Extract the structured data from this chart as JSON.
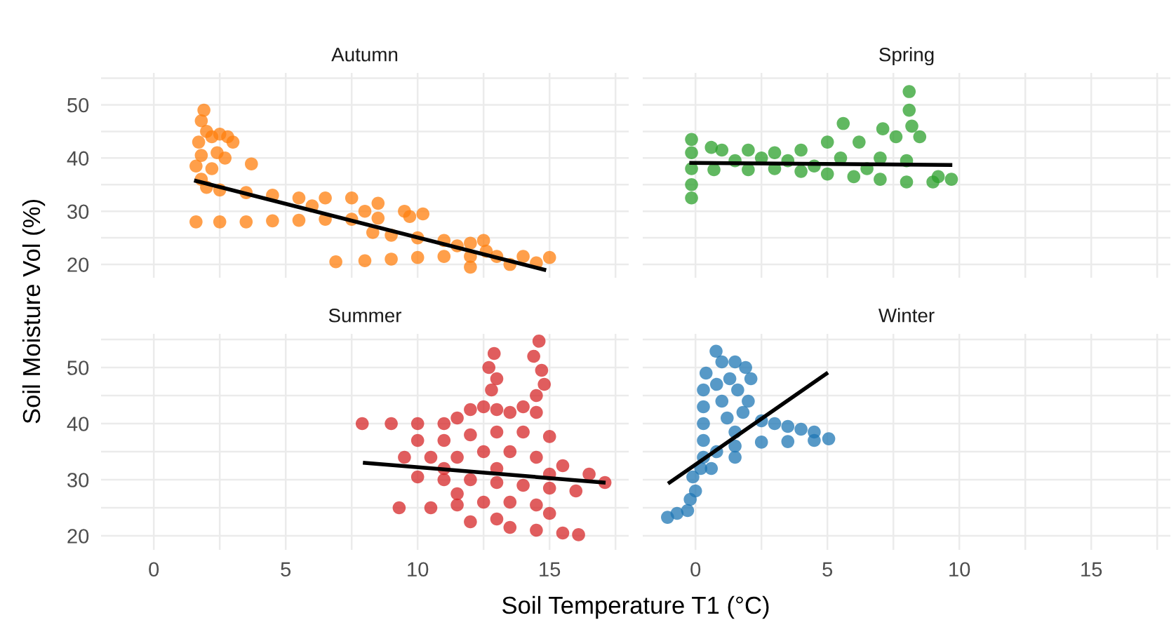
{
  "chart_data": [
    {
      "type": "scatter",
      "title": "Autumn",
      "ylabel": "Soil Moisture Vol (%)",
      "xlim": [
        -2,
        18
      ],
      "ylim": [
        17.5,
        56
      ],
      "xticks": [
        0,
        {
          "value": 2.5,
          "label": null
        },
        5,
        {
          "value": 7.5,
          "label": null
        },
        10,
        {
          "value": 12.5,
          "label": null
        },
        15,
        {
          "value": 17.5,
          "label": null
        }
      ],
      "yticks": [
        20,
        {
          "value": 25,
          "label": null
        },
        30,
        {
          "value": 35,
          "label": null
        },
        40,
        {
          "value": 45,
          "label": null
        },
        50,
        {
          "value": 55,
          "label": null
        }
      ],
      "tick_labels": "y",
      "grid": true,
      "marker": "circle",
      "series": [
        {
          "color": "#ff7f0e",
          "x": [
            1.9,
            1.8,
            2.0,
            1.7,
            2.2,
            2.5,
            2.8,
            3.0,
            2.4,
            1.8,
            2.7,
            1.6,
            2.2,
            3.7,
            1.8,
            2.0,
            2.5,
            3.5,
            4.5,
            5.5,
            6.5,
            7.5,
            8.5,
            9.5,
            10.2,
            6,
            8,
            1.6,
            2.5,
            3.5,
            4.5,
            5.5,
            6.5,
            7.5,
            8.5,
            9.7,
            8.3,
            9,
            10,
            11,
            12,
            12.5,
            12.6,
            11.5,
            6.9,
            8,
            9,
            10,
            11,
            12,
            13,
            14,
            15,
            12,
            13.5,
            14.5
          ],
          "values": [
            49,
            47,
            45,
            43,
            44,
            44.5,
            44,
            43,
            41,
            40.5,
            40,
            38.5,
            38,
            38.9,
            36,
            34.5,
            34,
            33.5,
            33,
            32.5,
            32.5,
            32.5,
            31.5,
            30,
            29.5,
            31,
            30,
            28,
            28,
            28,
            28.2,
            28.3,
            28.5,
            28.5,
            28.7,
            29,
            26,
            25.5,
            25,
            24.5,
            24,
            24.5,
            22.5,
            23.5,
            20.5,
            20.7,
            21,
            21.3,
            21.5,
            21.5,
            21.5,
            21.5,
            21.3,
            19.5,
            20,
            20.3
          ]
        },
        {
          "type": "line",
          "color": "#000000",
          "marker": "none",
          "x": [
            1.6,
            14.8
          ],
          "values": [
            35.7,
            19.0
          ]
        }
      ]
    },
    {
      "type": "scatter",
      "title": "Spring",
      "xlim": [
        -2,
        18
      ],
      "ylim": [
        17.5,
        56
      ],
      "xticks": [
        0,
        {
          "value": 2.5,
          "label": null
        },
        5,
        {
          "value": 7.5,
          "label": null
        },
        10,
        {
          "value": 12.5,
          "label": null
        },
        15,
        {
          "value": 17.5,
          "label": null
        }
      ],
      "yticks": [
        20,
        {
          "value": 25,
          "label": null
        },
        30,
        {
          "value": 35,
          "label": null
        },
        40,
        {
          "value": 45,
          "label": null
        },
        50,
        {
          "value": 55,
          "label": null
        }
      ],
      "tick_labels": false,
      "grid": true,
      "marker": "circle",
      "series": [
        {
          "color": "#2ca02c",
          "x": [
            -0.15,
            -0.15,
            -0.15,
            -0.15,
            -0.15,
            0.6,
            1,
            2,
            3,
            4,
            5,
            5.6,
            6.2,
            7.1,
            7.6,
            8.1,
            8.1,
            8.2,
            8.5,
            0.7,
            2,
            3,
            4,
            5,
            6,
            7,
            8,
            9,
            9.7,
            9.2,
            1.5,
            3.5,
            5.5,
            7,
            8,
            6.5,
            4.5,
            2.5
          ],
          "values": [
            43.5,
            41,
            38,
            35,
            32.5,
            42,
            41.5,
            41.5,
            41,
            41.5,
            43,
            46.5,
            43,
            45.5,
            44,
            52.5,
            49,
            46,
            44,
            37.8,
            37.8,
            38,
            37.5,
            37,
            36.5,
            36,
            35.5,
            35.5,
            36,
            36.5,
            39.5,
            39.5,
            40,
            40,
            39.5,
            38,
            38.5,
            40
          ]
        },
        {
          "type": "line",
          "color": "#000000",
          "marker": "none",
          "x": [
            -0.16,
            9.66
          ],
          "values": [
            39.1,
            38.7
          ]
        }
      ]
    },
    {
      "type": "scatter",
      "title": "Summer",
      "xlabel": "Soil Temperature T1 (°C)",
      "xlim": [
        -2,
        18
      ],
      "ylim": [
        17.5,
        56
      ],
      "xticks": [
        0,
        {
          "value": 2.5,
          "label": null
        },
        5,
        {
          "value": 7.5,
          "label": null
        },
        10,
        {
          "value": 12.5,
          "label": null
        },
        15,
        {
          "value": 17.5,
          "label": null
        }
      ],
      "yticks": [
        20,
        {
          "value": 25,
          "label": null
        },
        30,
        {
          "value": 35,
          "label": null
        },
        40,
        {
          "value": 45,
          "label": null
        },
        50,
        {
          "value": 55,
          "label": null
        }
      ],
      "grid": true,
      "marker": "circle",
      "series": [
        {
          "color": "#d62728",
          "x": [
            7.9,
            9,
            10,
            11,
            11.5,
            12,
            12.5,
            13,
            13.5,
            14,
            14.5,
            12.9,
            12.7,
            13,
            12.8,
            14.6,
            14.4,
            14.7,
            14.8,
            14.5,
            15,
            10,
            11,
            12,
            13,
            14,
            9.5,
            10.5,
            11.5,
            12.5,
            13.5,
            14.5,
            15.5,
            16.5,
            17.1,
            16,
            15,
            14,
            13,
            12,
            11,
            10,
            9.3,
            10.5,
            11.5,
            12.5,
            13.5,
            14.5,
            15,
            13,
            12,
            13.5,
            14.5,
            15.5,
            16.1,
            11.5,
            13,
            15,
            11
          ],
          "values": [
            40,
            40,
            40,
            40,
            41,
            42.5,
            43,
            42.5,
            42,
            43,
            42,
            52.5,
            50,
            48,
            46,
            54.7,
            52,
            49.5,
            47,
            45,
            37.7,
            37,
            37,
            38,
            38.5,
            38.5,
            34,
            34,
            34,
            35,
            35,
            34,
            32.5,
            31,
            29.5,
            28,
            28.5,
            29,
            29.5,
            30,
            30,
            30.5,
            25,
            25,
            25.5,
            26,
            26,
            25.5,
            24,
            23,
            22.5,
            21.5,
            21,
            20.5,
            20.2,
            27.5,
            32,
            31,
            32
          ]
        },
        {
          "type": "line",
          "color": "#000000",
          "marker": "none",
          "x": [
            8.0,
            17.05
          ],
          "values": [
            33.0,
            29.5
          ]
        }
      ]
    },
    {
      "type": "scatter",
      "title": "Winter",
      "xlim": [
        -2,
        18
      ],
      "ylim": [
        17.5,
        56
      ],
      "xticks": [
        0,
        {
          "value": 2.5,
          "label": null
        },
        5,
        {
          "value": 7.5,
          "label": null
        },
        10,
        {
          "value": 12.5,
          "label": null
        },
        15,
        {
          "value": 17.5,
          "label": null
        }
      ],
      "yticks": [
        20,
        {
          "value": 25,
          "label": null
        },
        30,
        {
          "value": 35,
          "label": null
        },
        40,
        {
          "value": 45,
          "label": null
        },
        50,
        {
          "value": 55,
          "label": null
        }
      ],
      "tick_labels": "x",
      "grid": true,
      "marker": "circle",
      "series": [
        {
          "color": "#1f77b4",
          "x": [
            -1.06,
            -0.7,
            -0.3,
            -0.2,
            0,
            -0.1,
            0.2,
            0.3,
            0.3,
            0.3,
            0.3,
            0.3,
            0.4,
            0.78,
            1,
            1.3,
            1.5,
            1.9,
            2.1,
            1.6,
            1,
            1.2,
            1.8,
            2.5,
            3,
            3.5,
            4,
            4.5,
            5.05,
            4.5,
            3.5,
            2.5,
            1.5,
            0.8,
            0.6,
            1.5,
            2,
            0.8,
            1.5
          ],
          "values": [
            23.3,
            24,
            24.5,
            26.5,
            28,
            30.5,
            32,
            34,
            37,
            40,
            43,
            46,
            49,
            52.9,
            51,
            48,
            51,
            50,
            48,
            46,
            44,
            41,
            42,
            40.5,
            40,
            39.5,
            39,
            38.5,
            37.3,
            37,
            36.8,
            36.7,
            36,
            35,
            32,
            38.5,
            44,
            47,
            34
          ]
        },
        {
          "type": "line",
          "color": "#000000",
          "marker": "none",
          "x": [
            -0.98,
            4.96
          ],
          "values": [
            29.5,
            48.9
          ]
        }
      ]
    }
  ]
}
